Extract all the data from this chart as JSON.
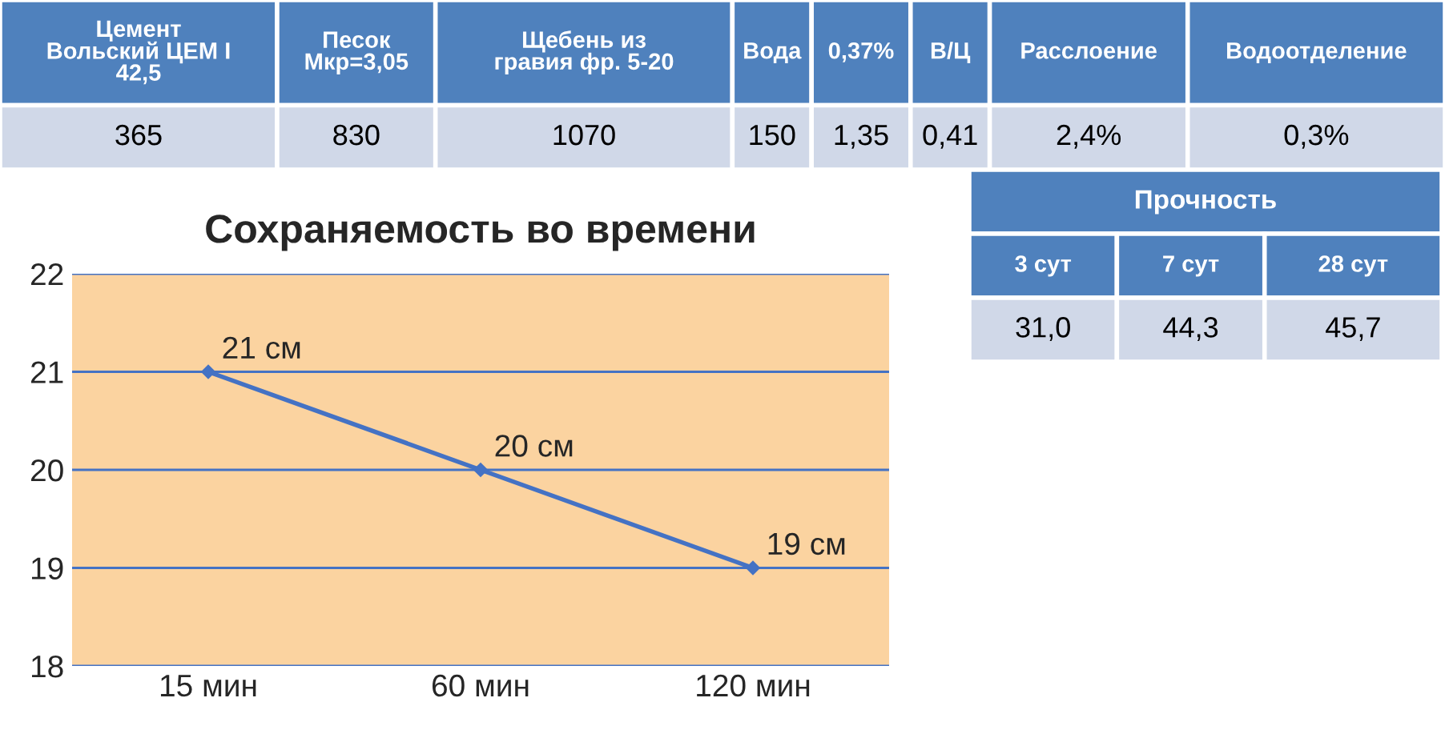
{
  "chart_data": [
    {
      "type": "other",
      "categories": [
        "Цемент\nВольский ЦЕМ I\n42,5",
        "Песок\nМкр=3,05",
        "Щебень из\nгравия фр. 5-20",
        "Вода",
        "0,37%",
        "В/Ц",
        "Расслоение",
        "Водоотделение"
      ],
      "annotations": [
        "365",
        "830",
        "1070",
        "150",
        "1,35",
        "0,41",
        "2,4%",
        "0,3%"
      ]
    },
    {
      "type": "line",
      "title": "Сохраняемость во времени",
      "categories": [
        "15 мин",
        "60 мин",
        "120 мин"
      ],
      "series": [
        {
          "color": "#4472c4",
          "values": [
            21,
            20,
            19
          ],
          "value_labels": [
            "21 см",
            "20 см",
            "19 см"
          ]
        }
      ],
      "ylim": [
        18,
        22
      ],
      "yticks": [
        18,
        19,
        20,
        21,
        22
      ],
      "grid": "y",
      "marker": "diamond",
      "line_style": "solid"
    },
    {
      "type": "other",
      "title": "Прочность",
      "categories": [
        "3 сут",
        "7 сут",
        "28 сут"
      ],
      "annotations": [
        "31,0",
        "44,3",
        "45,7"
      ]
    }
  ]
}
